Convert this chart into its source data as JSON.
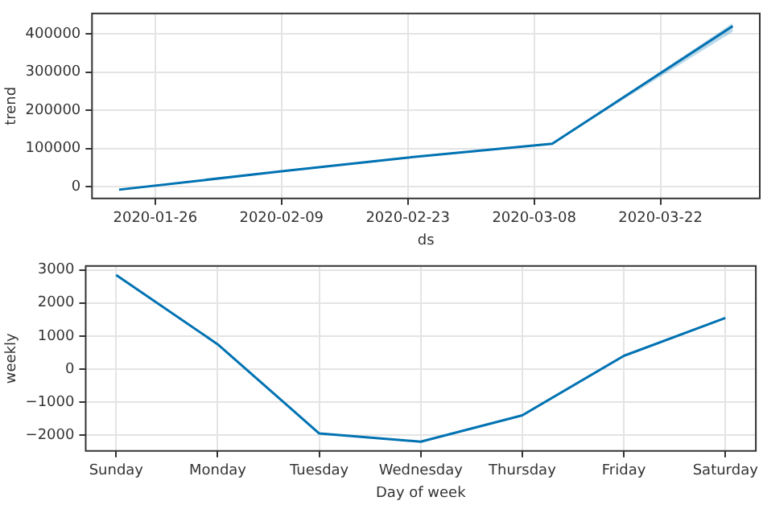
{
  "chart_data": [
    {
      "type": "line",
      "x": [
        "2020-01-22",
        "2020-02-09",
        "2020-02-23",
        "2020-03-10",
        "2020-03-30"
      ],
      "series": [
        {
          "color": "#0072b2",
          "values": [
            -8000,
            40000,
            76000,
            112000,
            420000
          ],
          "lower": [
            -8000,
            40000,
            76000,
            112000,
            405000
          ],
          "upper": [
            -8000,
            40000,
            76000,
            112000,
            428000
          ]
        }
      ],
      "xlabel": "ds",
      "ylabel": "trend",
      "xlim": [
        "2020-01-19",
        "2020-04-02"
      ],
      "ylim": [
        -31000,
        453000
      ],
      "xticks": [
        "2020-01-26",
        "2020-02-09",
        "2020-02-23",
        "2020-03-08",
        "2020-03-22"
      ],
      "yticks": [
        0,
        100000,
        200000,
        300000,
        400000
      ],
      "grid": true
    },
    {
      "type": "line",
      "categories": [
        "Sunday",
        "Monday",
        "Tuesday",
        "Wednesday",
        "Thursday",
        "Friday",
        "Saturday"
      ],
      "series": [
        {
          "color": "#0072b2",
          "values": [
            2850,
            750,
            -1950,
            -2200,
            -1400,
            400,
            1550
          ]
        }
      ],
      "xlabel": "Day of week",
      "ylabel": "weekly",
      "ylim": [
        -2480,
        3120
      ],
      "yticks": [
        {
          "value": -2000,
          "label": "−2000"
        },
        {
          "value": -1000,
          "label": "−1000"
        },
        0,
        1000,
        2000,
        3000
      ],
      "grid": true
    }
  ]
}
